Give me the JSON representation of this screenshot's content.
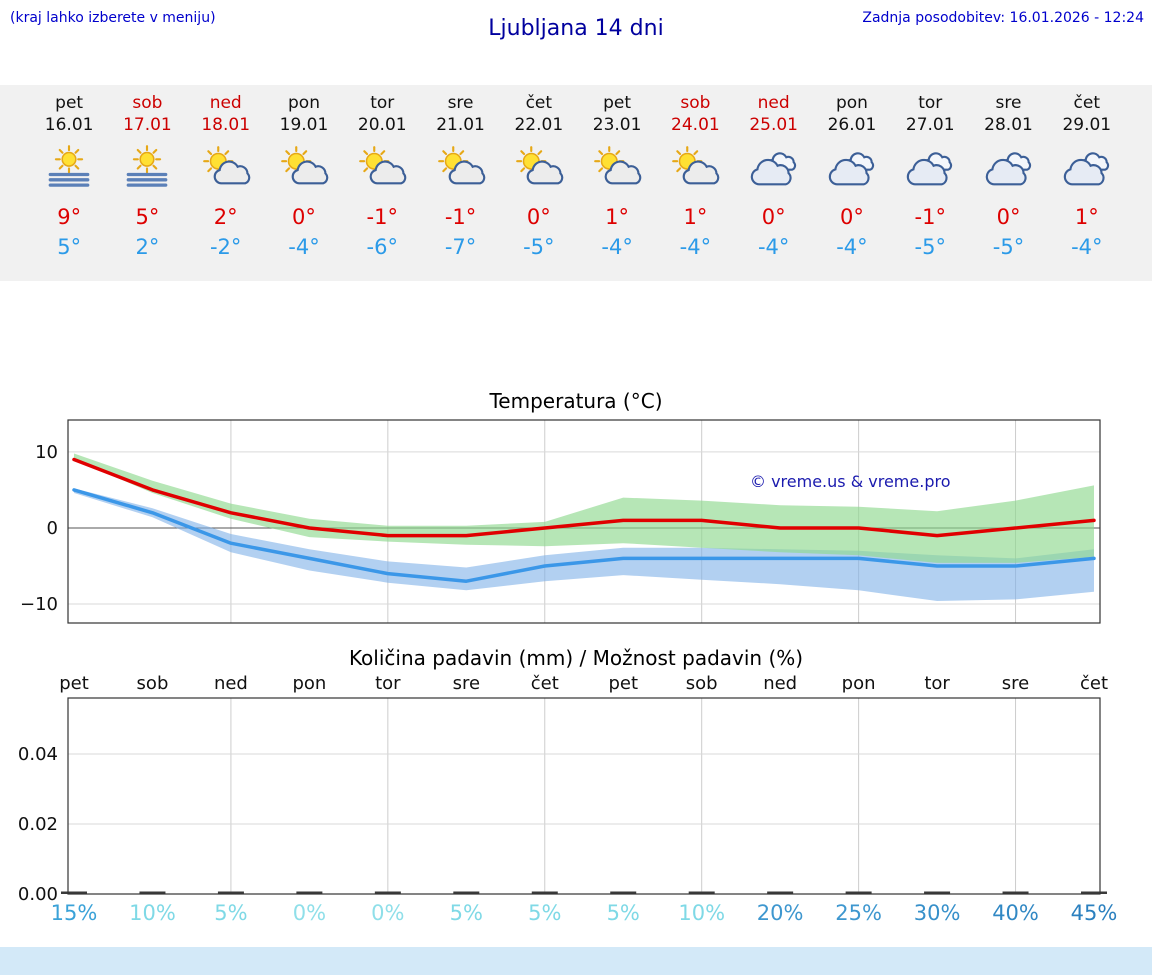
{
  "header": {
    "left_note": "(kraj lahko izberete v meniju)",
    "title": "Ljubljana 14 dni",
    "updated": "Zadnja posodobitev: 16.01.2026 - 12:24"
  },
  "copyright": "© vreme.us & vreme.pro",
  "days": [
    {
      "name": "pet",
      "date": "16.01",
      "weekend": false,
      "icon": "sun-fog",
      "high": "9°",
      "low": "5°"
    },
    {
      "name": "sob",
      "date": "17.01",
      "weekend": true,
      "icon": "sun-fog",
      "high": "5°",
      "low": "2°"
    },
    {
      "name": "ned",
      "date": "18.01",
      "weekend": true,
      "icon": "partly-cloudy",
      "high": "2°",
      "low": "-2°"
    },
    {
      "name": "pon",
      "date": "19.01",
      "weekend": false,
      "icon": "partly-cloudy",
      "high": "0°",
      "low": "-4°"
    },
    {
      "name": "tor",
      "date": "20.01",
      "weekend": false,
      "icon": "partly-cloudy",
      "high": "-1°",
      "low": "-6°"
    },
    {
      "name": "sre",
      "date": "21.01",
      "weekend": false,
      "icon": "partly-cloudy",
      "high": "-1°",
      "low": "-7°"
    },
    {
      "name": "čet",
      "date": "22.01",
      "weekend": false,
      "icon": "partly-cloudy",
      "high": "0°",
      "low": "-5°"
    },
    {
      "name": "pet",
      "date": "23.01",
      "weekend": false,
      "icon": "partly-cloudy",
      "high": "1°",
      "low": "-4°"
    },
    {
      "name": "sob",
      "date": "24.01",
      "weekend": true,
      "icon": "partly-cloudy",
      "high": "1°",
      "low": "-4°"
    },
    {
      "name": "ned",
      "date": "25.01",
      "weekend": true,
      "icon": "cloudy",
      "high": "0°",
      "low": "-4°"
    },
    {
      "name": "pon",
      "date": "26.01",
      "weekend": false,
      "icon": "cloudy",
      "high": "0°",
      "low": "-4°"
    },
    {
      "name": "tor",
      "date": "27.01",
      "weekend": false,
      "icon": "cloudy",
      "high": "-1°",
      "low": "-5°"
    },
    {
      "name": "sre",
      "date": "28.01",
      "weekend": false,
      "icon": "cloudy",
      "high": "0°",
      "low": "-5°"
    },
    {
      "name": "čet",
      "date": "29.01",
      "weekend": false,
      "icon": "cloudy",
      "high": "1°",
      "low": "-4°"
    }
  ],
  "chart_data": [
    {
      "type": "line",
      "title": "Temperatura (°C)",
      "categories": [
        "16.01",
        "17.01",
        "18.01",
        "19.01",
        "20.01",
        "21.01",
        "22.01",
        "23.01",
        "24.01",
        "25.01",
        "26.01",
        "27.01",
        "28.01",
        "29.01"
      ],
      "series": [
        {
          "name": "max-temperature",
          "color": "#e00000",
          "values": [
            9,
            5,
            2,
            0,
            -1,
            -1,
            0,
            1,
            1,
            0,
            0,
            -1,
            0,
            1
          ]
        },
        {
          "name": "min-temperature",
          "color": "#3b97e8",
          "values": [
            5,
            2,
            -2,
            -4,
            -6,
            -7,
            -5,
            -4,
            -4,
            -4,
            -4,
            -5,
            -5,
            -4
          ]
        }
      ],
      "bands": [
        {
          "name": "max-uncertainty",
          "color": "#8fd98f",
          "opacity": 0.65,
          "upper": [
            9.8,
            6.2,
            3.2,
            1.2,
            0.3,
            0.3,
            0.8,
            4.0,
            3.6,
            3.0,
            2.8,
            2.2,
            3.6,
            5.6
          ],
          "lower": [
            9.0,
            4.6,
            1.2,
            -1.2,
            -1.8,
            -2.2,
            -2.4,
            -2.0,
            -2.6,
            -3.2,
            -3.6,
            -4.6,
            -4.6,
            -3.8
          ]
        },
        {
          "name": "min-uncertainty",
          "color": "#7fb0e8",
          "opacity": 0.6,
          "upper": [
            5.2,
            2.6,
            -0.8,
            -2.8,
            -4.4,
            -5.2,
            -3.6,
            -2.6,
            -2.6,
            -2.8,
            -3.0,
            -3.6,
            -4.0,
            -2.8
          ],
          "lower": [
            4.6,
            1.4,
            -3.2,
            -5.6,
            -7.2,
            -8.2,
            -7.0,
            -6.2,
            -6.8,
            -7.4,
            -8.2,
            -9.6,
            -9.4,
            -8.4
          ]
        }
      ],
      "ylim": [
        -12.5,
        14.2
      ],
      "yticks": [
        {
          "label": "10",
          "value": 10
        },
        {
          "label": "0",
          "value": 0
        },
        {
          "label": "−10",
          "value": -10
        }
      ],
      "grid_x_indices": [
        2,
        4,
        6,
        8,
        10,
        12
      ],
      "legend": "none",
      "grid": true
    },
    {
      "type": "bar",
      "title": "Količina padavin (mm) / Možnost padavin (%)",
      "categories": [
        "pet",
        "sob",
        "ned",
        "pon",
        "tor",
        "sre",
        "čet",
        "pet",
        "sob",
        "ned",
        "pon",
        "tor",
        "sre",
        "čet"
      ],
      "values": [
        0,
        0,
        0,
        0,
        0,
        0,
        0,
        0,
        0,
        0,
        0,
        0,
        0,
        0
      ],
      "ylim": [
        0,
        0.056
      ],
      "yticks": [
        {
          "label": "0.04",
          "value": 0.04
        },
        {
          "label": "0.02",
          "value": 0.02
        },
        {
          "label": "0.00",
          "value": 0
        }
      ],
      "grid_x_indices": [
        2,
        4,
        6,
        8,
        10,
        12
      ],
      "bar_color": "#3a3a3a",
      "probabilities": [
        {
          "label": "15%",
          "color": "#3aa2d8"
        },
        {
          "label": "10%",
          "color": "#7fd9e6"
        },
        {
          "label": "5%",
          "color": "#7fd9e6"
        },
        {
          "label": "0%",
          "color": "#8fdfe9"
        },
        {
          "label": "0%",
          "color": "#8fdfe9"
        },
        {
          "label": "5%",
          "color": "#7fd9e6"
        },
        {
          "label": "5%",
          "color": "#7fd9e6"
        },
        {
          "label": "5%",
          "color": "#7fd9e6"
        },
        {
          "label": "10%",
          "color": "#7fd9e6"
        },
        {
          "label": "20%",
          "color": "#3e97cf"
        },
        {
          "label": "25%",
          "color": "#3e97cf"
        },
        {
          "label": "30%",
          "color": "#3790ca"
        },
        {
          "label": "40%",
          "color": "#3188c4"
        },
        {
          "label": "45%",
          "color": "#2b80bf"
        }
      ]
    }
  ],
  "colors": {
    "high_temp": "#dd0000",
    "low_temp": "#2b9ae8",
    "weekend": "#cc0000",
    "weekday": "#111111",
    "header_blue": "#0000cc",
    "title_blue": "#00009e",
    "strip_bg": "#f1f1f1",
    "footer_bg": "#d3e9f8",
    "copyright_blue": "#1a1aae"
  }
}
